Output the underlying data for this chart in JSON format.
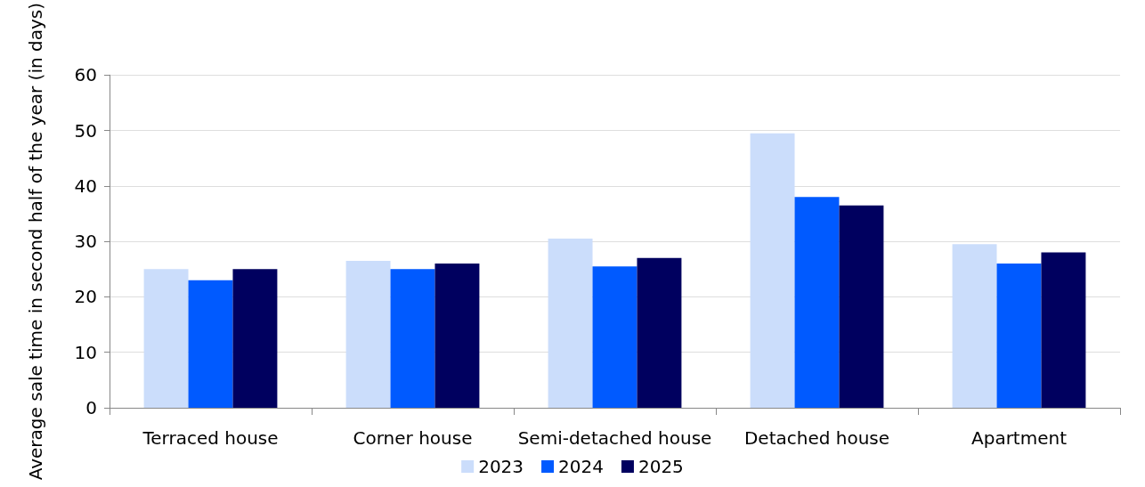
{
  "chart_data": {
    "type": "bar",
    "ylabel": "Average sale time in second half of the year (in days)",
    "categories": [
      "Terraced house",
      "Corner house",
      "Semi-detached house",
      "Detached house",
      "Apartment"
    ],
    "series": [
      {
        "name": "2023",
        "color": "#cbddfb",
        "values": [
          25,
          26.5,
          30.5,
          49.5,
          29.5
        ]
      },
      {
        "name": "2024",
        "color": "#005aff",
        "values": [
          23,
          25,
          25.5,
          38,
          26
        ]
      },
      {
        "name": "2025",
        "color": "#00005f",
        "values": [
          25,
          26,
          27,
          36.5,
          28
        ]
      }
    ],
    "ylim": [
      0,
      60
    ],
    "yticks": [
      0,
      10,
      20,
      30,
      40,
      50,
      60
    ],
    "grid": "y",
    "legend": "bottom"
  }
}
